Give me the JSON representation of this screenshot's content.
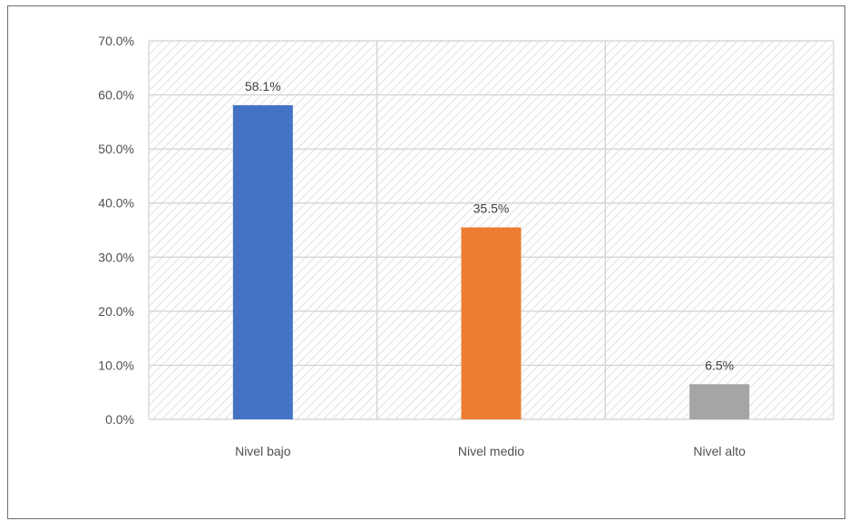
{
  "chart_data": {
    "type": "bar",
    "title": "",
    "xlabel": "",
    "ylabel": "",
    "categories": [
      "Nivel bajo",
      "Nivel medio",
      "Nivel alto"
    ],
    "values": [
      58.1,
      35.5,
      6.5
    ],
    "data_labels": [
      "58.1%",
      "35.5%",
      "6.5%"
    ],
    "colors": [
      "#4472c4",
      "#ed7d31",
      "#a5a5a5"
    ],
    "ylim": [
      0,
      70
    ],
    "yticks": [
      0,
      10,
      20,
      30,
      40,
      50,
      60,
      70
    ],
    "ytick_labels": [
      "0.0%",
      "10.0%",
      "20.0%",
      "30.0%",
      "40.0%",
      "50.0%",
      "60.0%",
      "70.0%"
    ],
    "grid": true,
    "plot_background": "hatched",
    "legend": "none"
  }
}
